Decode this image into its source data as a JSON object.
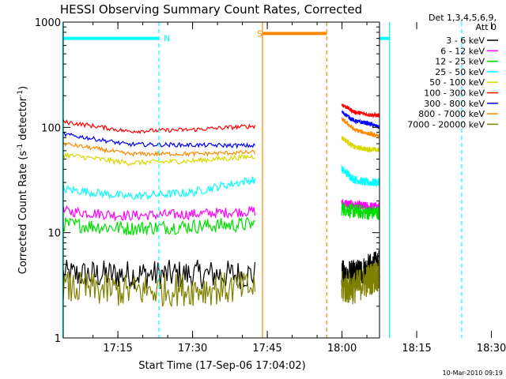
{
  "chart_data": {
    "type": "line",
    "title": "HESSI Observing Summary Count Rates, Corrected",
    "xlabel": "Start Time (17-Sep-06 17:04:02)",
    "ylabel_main": "Corrected Count Rate (s",
    "ylabel_sup1": "-1",
    "ylabel_mid": " detector",
    "ylabel_sup2": "-1",
    "ylabel_end": ")",
    "yscale": "log",
    "ylim": [
      1,
      1000
    ],
    "xlim_minutes": [
      0,
      63.5
    ],
    "x_ticks": [
      {
        "min": 10.97,
        "label": "17:15"
      },
      {
        "min": 25.97,
        "label": "17:30"
      },
      {
        "min": 40.97,
        "label": "17:45"
      },
      {
        "min": 55.97,
        "label": "18:00"
      },
      {
        "min": 70.97,
        "label": "18:15"
      },
      {
        "min": 85.97,
        "label": "18:30"
      }
    ],
    "y_ticks": [
      {
        "value": 1,
        "label": "1"
      },
      {
        "value": 10,
        "label": "10"
      },
      {
        "value": 100,
        "label": "100"
      },
      {
        "value": 1000,
        "label": "1000"
      }
    ],
    "legend": {
      "placement": "right",
      "header_line1": "Det 1,3,4,5,6,9,",
      "header_line2": "Att 0",
      "entries": [
        {
          "label": "3 - 6 keV",
          "color": "#000000"
        },
        {
          "label": "6 - 12 keV",
          "color": "#ff00ff"
        },
        {
          "label": "12 - 25 keV",
          "color": "#00dd00"
        },
        {
          "label": "25 - 50 keV",
          "color": "#00ffff"
        },
        {
          "label": "50 - 100 keV",
          "color": "#d8d800"
        },
        {
          "label": "100 - 300 keV",
          "color": "#ff0000"
        },
        {
          "label": "300 - 800 keV",
          "color": "#0000ff"
        },
        {
          "label": "800 - 7000 keV",
          "color": "#ff8800"
        },
        {
          "label": "7000 - 20000 keV",
          "color": "#808000"
        }
      ]
    },
    "intervals": [
      {
        "label": "N",
        "color": "#00ffff",
        "start": -1,
        "end": 19.2,
        "level": 700
      },
      {
        "label": "S",
        "color": "#ff8800",
        "start": 40.0,
        "end": 52.9,
        "level": 780
      },
      {
        "label": "",
        "color": "#00ffff",
        "start": 65.5,
        "end": 80.0,
        "level": 700
      }
    ],
    "interval_lines": [
      {
        "min": -0.1,
        "color": "#00ffff",
        "style": "solid"
      },
      {
        "min": 19.2,
        "color": "#00ffff",
        "style": "dashed"
      },
      {
        "min": 40.0,
        "color": "#ff8800",
        "style": "solid"
      },
      {
        "min": 52.9,
        "color": "#ff8800",
        "style": "dashed"
      },
      {
        "min": 65.5,
        "color": "#00ffff",
        "style": "solid"
      },
      {
        "min": 80.0,
        "color": "#00ffff",
        "style": "dashed"
      }
    ],
    "data_gap_minutes": [
      38.5,
      55.9
    ],
    "series": [
      {
        "name": "3 - 6 keV",
        "color": "#000000",
        "seg1": [
          4.0,
          4.0,
          4.0,
          4.0
        ],
        "seg2": [
          4.0,
          4.0,
          4.5,
          5.0
        ],
        "noise": 0.14
      },
      {
        "name": "6 - 12 keV",
        "color": "#ff00ff",
        "seg1": [
          16.0,
          14.5,
          15.0,
          16.0
        ],
        "seg2": [
          19.0,
          18.0,
          17.5,
          17.5
        ],
        "noise": 0.05
      },
      {
        "name": "12 - 25 keV",
        "color": "#00dd00",
        "seg1": [
          12.0,
          11.0,
          11.5,
          12.0
        ],
        "seg2": [
          17.0,
          16.0,
          15.5,
          15.5
        ],
        "noise": 0.07
      },
      {
        "name": "25 - 50 keV",
        "color": "#00ffff",
        "seg1": [
          26.0,
          22.0,
          24.0,
          32.0
        ],
        "seg2": [
          40.0,
          32.0,
          30.0,
          30.0
        ],
        "noise": 0.04
      },
      {
        "name": "50 - 100 keV",
        "color": "#d8d800",
        "seg1": [
          55.0,
          46.0,
          48.0,
          53.0
        ],
        "seg2": [
          80.0,
          65.0,
          62.0,
          61.0
        ],
        "noise": 0.025
      },
      {
        "name": "100 - 300 keV",
        "color": "#ff0000",
        "seg1": [
          113.0,
          92.0,
          95.0,
          103.0
        ],
        "seg2": [
          165.0,
          140.0,
          133.0,
          130.0
        ],
        "noise": 0.02
      },
      {
        "name": "300 - 800 keV",
        "color": "#0000ff",
        "seg1": [
          86.0,
          69.0,
          68.0,
          67.0
        ],
        "seg2": [
          140.0,
          115.0,
          110.0,
          100.0
        ],
        "noise": 0.02
      },
      {
        "name": "800 - 7000 keV",
        "color": "#ff8800",
        "seg1": [
          70.0,
          56.0,
          56.0,
          58.0
        ],
        "seg2": [
          120.0,
          95.0,
          88.0,
          82.0
        ],
        "noise": 0.02
      },
      {
        "name": "7000 - 20000 keV",
        "color": "#808000",
        "seg1": [
          3.0,
          2.8,
          2.9,
          3.0
        ],
        "seg2": [
          3.0,
          3.0,
          3.5,
          4.0
        ],
        "noise": 0.16
      }
    ]
  },
  "footer": {
    "date_stamp": "10-Mar-2010 09:19"
  }
}
